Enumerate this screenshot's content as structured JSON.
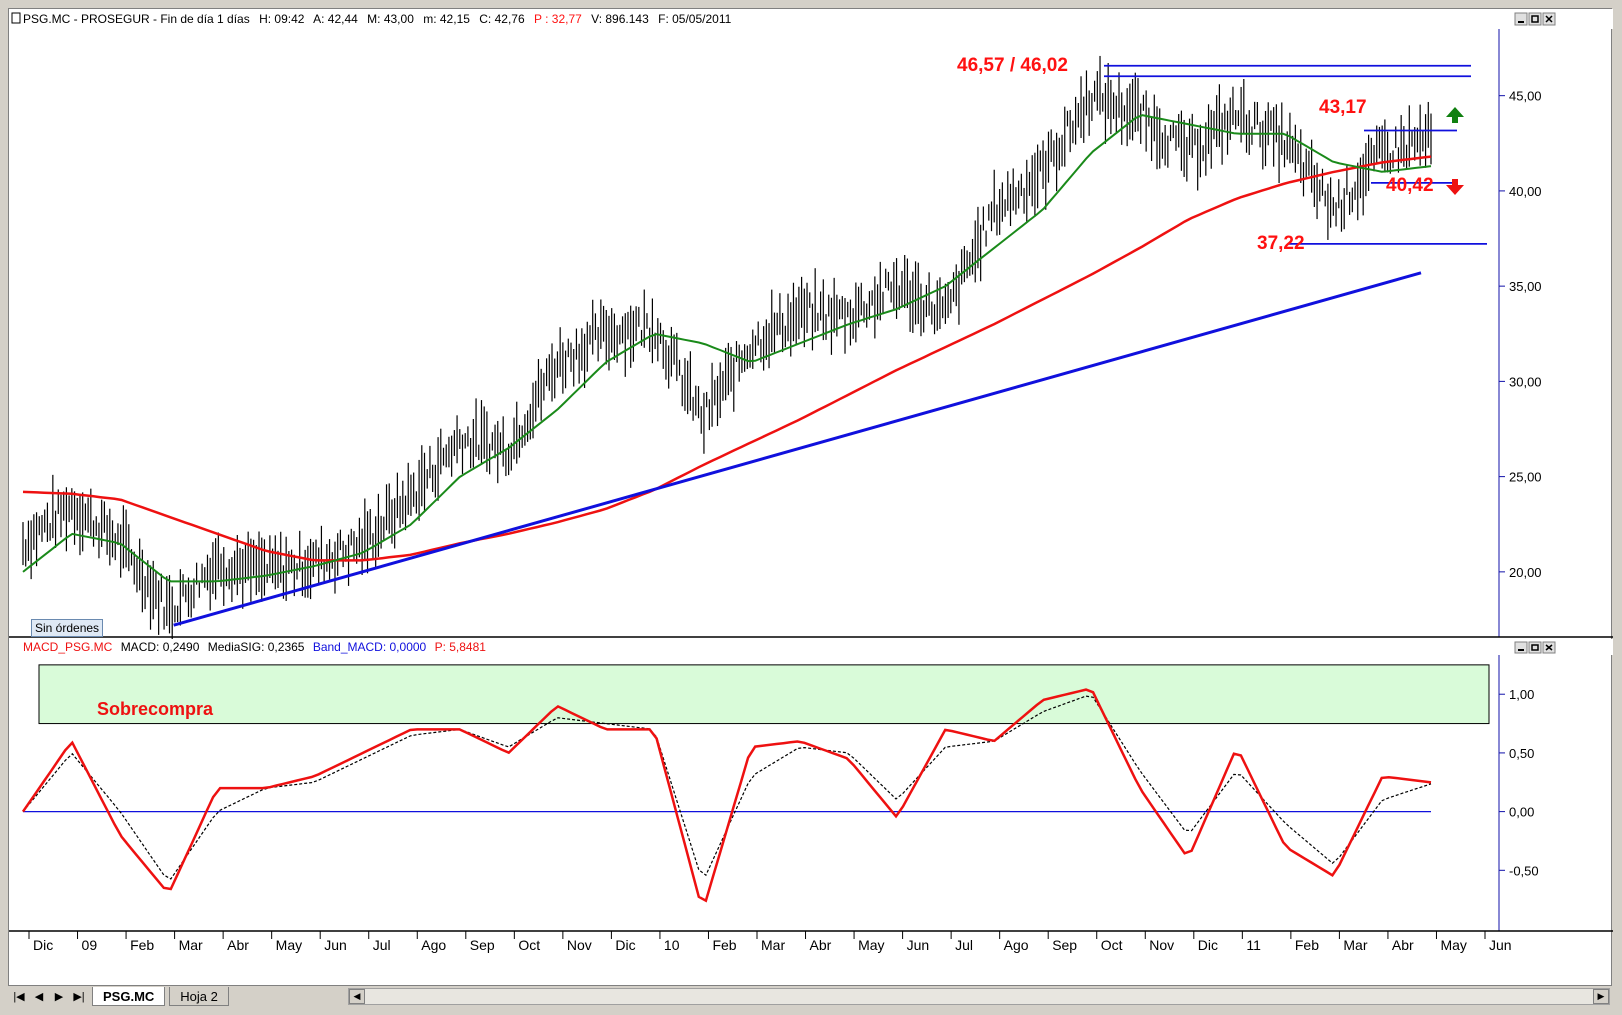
{
  "price_panel": {
    "header": {
      "symbol": "PSG.MC - PROSEGUR - Fin de día 1 días",
      "h": "H: 09:42",
      "a": "A: 42,44",
      "m": "M: 43,00",
      "min": "m: 42,15",
      "c": "C: 42,76",
      "p": "P : 32,77",
      "v": "V: 896.143",
      "f": "F: 05/05/2011"
    },
    "y_ticks": [
      "45,00",
      "40,00",
      "35,00",
      "30,00",
      "25,00",
      "20,00"
    ],
    "annotations": {
      "top_resistance": "46,57 / 46,02",
      "range_top": "43,17",
      "range_bottom": "40,42",
      "low_support": "37,22"
    },
    "orders_badge": "Sin órdenes",
    "colors": {
      "sma_fast": "#1a8a1a",
      "sma_slow": "#ee1111",
      "trendline": "#1010dd",
      "bars": "#000000",
      "up_arrow": "#108010",
      "down_arrow": "#ee1111"
    }
  },
  "macd_panel": {
    "header": {
      "name": "MACD_PSG.MC",
      "macd": "MACD: 0,2490",
      "signal": "MediaSIG: 0,2365",
      "band": "Band_MACD: 0,0000",
      "p": "P: 5,8481"
    },
    "y_ticks": [
      "1,00",
      "0,50",
      "0,00",
      "-0,50"
    ],
    "zone_label": "Sobrecompra",
    "colors": {
      "macd": "#ee1111",
      "signal": "#000000",
      "zero": "#1010dd",
      "zone": "#d9fbd9"
    }
  },
  "x_axis": {
    "labels": [
      "Dic",
      "09",
      "Feb",
      "Mar",
      "Abr",
      "May",
      "Jun",
      "Jul",
      "Ago",
      "Sep",
      "Oct",
      "Nov",
      "Dic",
      "10",
      "Feb",
      "Mar",
      "Abr",
      "May",
      "Jun",
      "Jul",
      "Ago",
      "Sep",
      "Oct",
      "Nov",
      "Dic",
      "11",
      "Feb",
      "Mar",
      "Abr",
      "May",
      "Jun"
    ]
  },
  "sheets": {
    "tabs": [
      "PSG.MC",
      "Hoja 2"
    ]
  },
  "chart_data": [
    {
      "type": "line",
      "title": "PSG.MC - PROSEGUR",
      "x": [
        "2008-12",
        "2009-01",
        "2009-02",
        "2009-03",
        "2009-04",
        "2009-05",
        "2009-06",
        "2009-07",
        "2009-08",
        "2009-09",
        "2009-10",
        "2009-11",
        "2009-12",
        "2010-01",
        "2010-02",
        "2010-03",
        "2010-04",
        "2010-05",
        "2010-06",
        "2010-07",
        "2010-08",
        "2010-09",
        "2010-10",
        "2010-11",
        "2010-12",
        "2011-01",
        "2011-02",
        "2011-03",
        "2011-04",
        "2011-05"
      ],
      "series": [
        {
          "name": "price",
          "values": [
            21.5,
            23.5,
            21.5,
            18.0,
            20.5,
            20.0,
            20.5,
            21.5,
            24.0,
            27.0,
            26.5,
            31.0,
            32.5,
            33.0,
            28.0,
            32.0,
            33.5,
            33.5,
            35.0,
            33.5,
            39.0,
            41.0,
            45.0,
            44.0,
            42.0,
            44.0,
            42.5,
            39.0,
            42.0,
            42.76
          ]
        },
        {
          "values": [
            20.0,
            22.0,
            21.5,
            19.5,
            19.5,
            19.8,
            20.3,
            21.0,
            22.5,
            25.0,
            26.5,
            28.5,
            31.0,
            32.5,
            32.0,
            31.0,
            32.0,
            33.0,
            33.8,
            35.0,
            37.0,
            39.0,
            42.0,
            44.0,
            43.5,
            43.0,
            43.0,
            41.5,
            41.0,
            41.3
          ]
        },
        {
          "values": [
            24.2,
            24.1,
            23.8,
            22.9,
            22.0,
            21.1,
            20.6,
            20.6,
            20.9,
            21.5,
            22.0,
            22.6,
            23.3,
            24.3,
            25.6,
            26.8,
            28.0,
            29.3,
            30.6,
            31.8,
            33.0,
            34.3,
            35.6,
            37.0,
            38.5,
            39.6,
            40.4,
            41.0,
            41.5,
            41.8
          ]
        }
      ],
      "y_range": [
        17.0,
        48.5
      ],
      "levels": [
        46.57,
        46.02,
        43.17,
        40.42,
        37.22
      ],
      "trendline": [
        [
          "2009-03",
          17.2
        ],
        [
          "2011-05",
          35.7
        ]
      ]
    },
    {
      "type": "line",
      "title": "MACD_PSG.MC",
      "x": [
        "2008-12",
        "2009-01",
        "2009-02",
        "2009-03",
        "2009-04",
        "2009-05",
        "2009-06",
        "2009-07",
        "2009-08",
        "2009-09",
        "2009-10",
        "2009-11",
        "2009-12",
        "2010-01",
        "2010-02",
        "2010-03",
        "2010-04",
        "2010-05",
        "2010-06",
        "2010-07",
        "2010-08",
        "2010-09",
        "2010-10",
        "2010-11",
        "2010-12",
        "2011-01",
        "2011-02",
        "2011-03",
        "2011-04",
        "2011-05"
      ],
      "series": [
        {
          "name": "MACD",
          "values": [
            0.0,
            0.6,
            -0.2,
            -0.7,
            0.2,
            0.2,
            0.3,
            0.5,
            0.7,
            0.7,
            0.5,
            0.9,
            0.7,
            0.7,
            -0.85,
            0.55,
            0.6,
            0.45,
            -0.05,
            0.7,
            0.6,
            0.95,
            1.05,
            0.2,
            -0.4,
            0.55,
            -0.3,
            -0.55,
            0.3,
            0.249
          ]
        },
        {
          "name": "MediaSIG",
          "values": [
            0.0,
            0.5,
            0.0,
            -0.6,
            0.0,
            0.2,
            0.25,
            0.45,
            0.65,
            0.7,
            0.55,
            0.8,
            0.75,
            0.7,
            -0.6,
            0.3,
            0.55,
            0.5,
            0.1,
            0.55,
            0.6,
            0.85,
            1.0,
            0.35,
            -0.2,
            0.35,
            -0.1,
            -0.45,
            0.1,
            0.2365
          ]
        },
        {
          "name": "Band_MACD",
          "values": [
            0.0,
            0.0,
            0.0,
            0.0,
            0.0,
            0.0,
            0.0,
            0.0,
            0.0,
            0.0,
            0.0,
            0.0,
            0.0,
            0.0,
            0.0,
            0.0,
            0.0,
            0.0,
            0.0,
            0.0,
            0.0,
            0.0,
            0.0,
            0.0,
            0.0,
            0.0,
            0.0,
            0.0,
            0.0,
            0.0
          ]
        }
      ],
      "y_range": [
        -1.0,
        1.3
      ],
      "overbought_zone": [
        0.75,
        1.25
      ]
    }
  ]
}
